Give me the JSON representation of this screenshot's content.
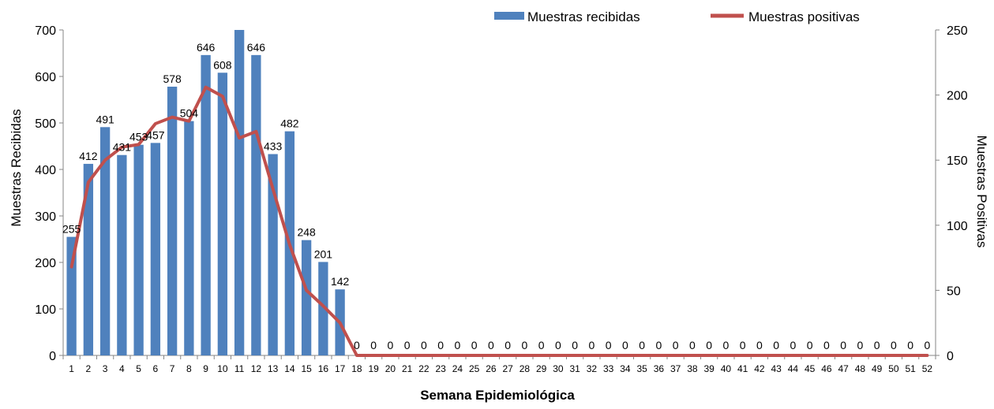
{
  "chart_data": {
    "type": "bar",
    "xlabel": "Semana Epidemiológica",
    "ylabel_left": "Muestras Recibidas",
    "ylabel_right": "Muestras Positivas",
    "ylim_left": [
      0,
      700
    ],
    "ylim_right": [
      0,
      250
    ],
    "yticks_left": [
      0,
      100,
      200,
      300,
      400,
      500,
      600,
      700
    ],
    "yticks_right": [
      0,
      50,
      100,
      150,
      200,
      250
    ],
    "legend_position": "top-right",
    "grid": false,
    "categories": [
      "1",
      "2",
      "3",
      "4",
      "5",
      "6",
      "7",
      "8",
      "9",
      "10",
      "11",
      "12",
      "13",
      "14",
      "15",
      "16",
      "17",
      "18",
      "19",
      "20",
      "21",
      "22",
      "23",
      "24",
      "25",
      "26",
      "27",
      "28",
      "29",
      "30",
      "31",
      "32",
      "33",
      "34",
      "35",
      "36",
      "37",
      "38",
      "39",
      "40",
      "41",
      "42",
      "43",
      "44",
      "45",
      "46",
      "47",
      "48",
      "49",
      "50",
      "51",
      "52"
    ],
    "series": [
      {
        "name": "Muestras recibidas",
        "type": "bar",
        "axis": "left",
        "color": "#4f81bd",
        "values": [
          255,
          412,
          491,
          431,
          453,
          457,
          578,
          504,
          646,
          608,
          700,
          646,
          433,
          482,
          248,
          201,
          142,
          0,
          0,
          0,
          0,
          0,
          0,
          0,
          0,
          0,
          0,
          0,
          0,
          0,
          0,
          0,
          0,
          0,
          0,
          0,
          0,
          0,
          0,
          0,
          0,
          0,
          0,
          0,
          0,
          0,
          0,
          0,
          0,
          0,
          0,
          0
        ],
        "labels": [
          "255",
          "412",
          "491",
          "431",
          "453",
          "457",
          "578",
          "504",
          "646",
          "608",
          "",
          "646",
          "433",
          "482",
          "248",
          "201",
          "142",
          "0",
          "0",
          "0",
          "0",
          "0",
          "0",
          "0",
          "0",
          "0",
          "0",
          "0",
          "0",
          "0",
          "0",
          "0",
          "0",
          "0",
          "0",
          "0",
          "0",
          "0",
          "0",
          "0",
          "0",
          "0",
          "0",
          "0",
          "0",
          "0",
          "0",
          "0",
          "0",
          "0",
          "0",
          "0"
        ]
      },
      {
        "name": "Muestras positivas",
        "type": "line",
        "axis": "right",
        "color": "#c0504d",
        "values": [
          68,
          133,
          150,
          160,
          162,
          178,
          183,
          180,
          206,
          199,
          167,
          172,
          128,
          85,
          50,
          38,
          25,
          0,
          0,
          0,
          0,
          0,
          0,
          0,
          0,
          0,
          0,
          0,
          0,
          0,
          0,
          0,
          0,
          0,
          0,
          0,
          0,
          0,
          0,
          0,
          0,
          0,
          0,
          0,
          0,
          0,
          0,
          0,
          0,
          0,
          0,
          0
        ]
      }
    ]
  }
}
